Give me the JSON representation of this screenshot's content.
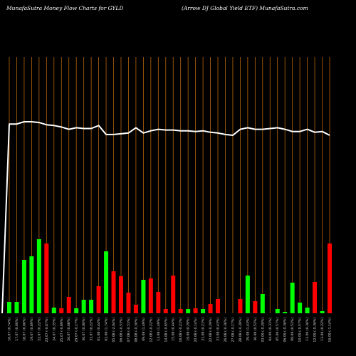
{
  "header": {
    "left_title": "MunafaSutra  Money Flow  Charts for GYLD",
    "right_title": "(Arrow  DJ Global Yield ETF) MunafaSutra.com"
  },
  "colors": {
    "background": "#000000",
    "gridline": "#b8660b",
    "price_line": "#ffffff",
    "up_bar": "#00ff00",
    "down_bar": "#ff0000"
  },
  "chart_data": {
    "type": "bar",
    "title": "",
    "xlabel": "",
    "ylabel": "",
    "categories": [
      "16.07 (0.74%)",
      "17.07 (0.00%)",
      "18.07 (0.66%)",
      "19.07 (0.89%)",
      "22.07 (0.22%)",
      "23.07 (-0.67%)",
      "24.07 (0.35%)",
      "25.07 (-0.89%)",
      "26.07 (0.68%)",
      "29.07 (-0.17%)",
      "30.07 (0.00%)",
      "31.07 (0.22%)",
      "01.08 (0.44%)",
      "02.08 (1.74%)",
      "05.08 (-2.04%)",
      "06.08 (-0.53%)",
      "07.08 (-0.51%)",
      "08.08 (-0.30%)",
      "09.08 (1.49%)",
      "12.08 (-0.22%)",
      "13.08 (1.49%)",
      "14.08 (-0.65%)",
      "15.08 (0.44%)",
      "16.08 (-0.21%)",
      "19.08 (0.29%)",
      "20.08 (-0.14%)",
      "21.08 (0.21%)",
      "22.08 (-0.29%)",
      "23.08 (0.43%)",
      "26.08 (-0.36%)",
      "27.08 (-0.17%)",
      "28.08 (-0.39%)",
      "29.08 (1.43%)",
      "30.08 (0.52%)",
      "03.09 (-0.29%)",
      "04.09 (0.31%)",
      "05.09 (0.57%)",
      "06.09 (-0.36%)",
      "09.09 (0.52%)",
      "10.09 (-0.57%)",
      "11.09 (0.36%)",
      "12.09 (-0.36%)",
      "13.09 (0.22%)",
      "16.09 (-1.14%)"
    ],
    "price": [
      16.26,
      16.26,
      16.29,
      16.29,
      16.28,
      16.25,
      16.24,
      16.22,
      16.19,
      16.21,
      16.2,
      16.2,
      16.24,
      16.12,
      16.12,
      16.13,
      16.14,
      16.21,
      16.14,
      16.17,
      16.19,
      16.18,
      16.18,
      16.17,
      16.17,
      16.16,
      16.17,
      16.15,
      16.14,
      16.12,
      16.11,
      16.19,
      16.21,
      16.19,
      16.19,
      16.2,
      16.21,
      16.19,
      16.16,
      16.16,
      16.19,
      16.15,
      16.16,
      16.11
    ],
    "price_initial": 10.0,
    "series": [
      {
        "values": [
          16,
          16,
          75,
          80,
          104,
          0,
          8,
          0,
          0,
          7,
          19,
          19,
          0,
          87,
          0,
          0,
          0,
          0,
          47,
          0,
          0,
          0,
          0,
          0,
          6,
          0,
          6,
          0,
          0,
          0,
          0,
          0,
          53,
          0,
          27,
          0,
          6,
          2,
          43,
          15,
          8,
          0,
          3,
          0
        ]
      },
      {
        "values": [
          0,
          0,
          0,
          0,
          0,
          98,
          0,
          7,
          23,
          0,
          0,
          0,
          38,
          0,
          59,
          52,
          29,
          12,
          0,
          49,
          30,
          6,
          53,
          6,
          0,
          7,
          0,
          13,
          20,
          0,
          0,
          20,
          0,
          17,
          0,
          0,
          0,
          0,
          0,
          0,
          0,
          44,
          0,
          98
        ]
      }
    ]
  }
}
